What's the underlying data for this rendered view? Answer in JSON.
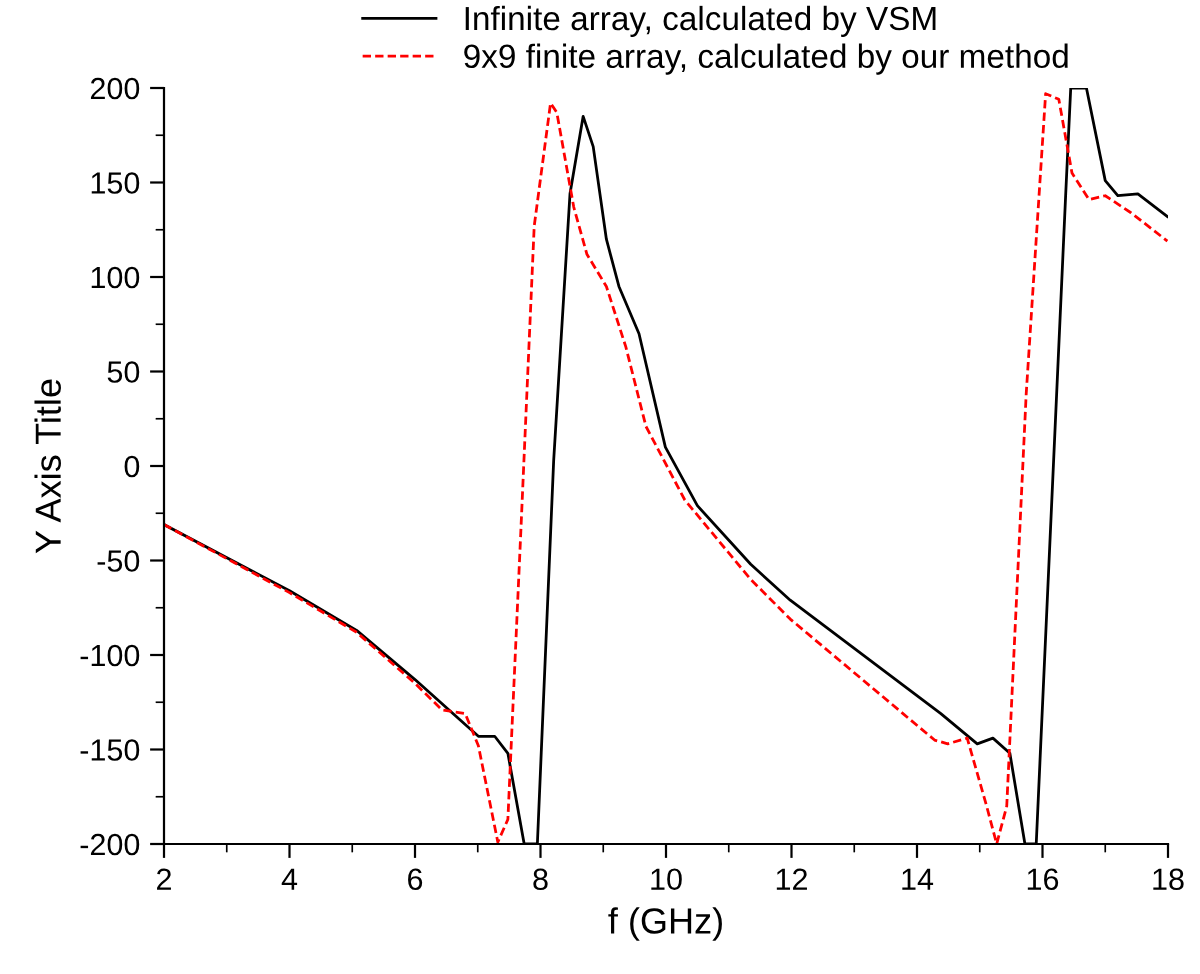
{
  "chart_data": {
    "type": "line",
    "xlabel": "f (GHz)",
    "ylabel": "Y Axis Title",
    "xlim": [
      2,
      18
    ],
    "ylim": [
      -200,
      200
    ],
    "xticks": [
      2,
      4,
      6,
      8,
      10,
      12,
      14,
      16,
      18
    ],
    "yticks": [
      -200,
      -150,
      -100,
      -50,
      0,
      50,
      100,
      150,
      200
    ],
    "grid": false,
    "legend": "top",
    "marker": "none",
    "series": [
      {
        "name": "Infinite array, calculated by VSM",
        "color": "#000000",
        "line_style": "solid",
        "x": [
          2,
          4,
          5.07,
          6,
          6.64,
          7.01,
          7.27,
          7.48,
          7.74,
          7.95,
          8.21,
          8.47,
          8.68,
          8.84,
          9.05,
          9.25,
          9.57,
          9.99,
          10.5,
          11.35,
          11.98,
          14.38,
          14.96,
          15.21,
          15.48,
          15.72,
          15.9,
          16.37,
          16.45,
          16.7,
          17.0,
          17.2,
          17.52,
          17.99
        ],
        "values": [
          -31,
          -66,
          -87,
          -113,
          -132,
          -143,
          -143,
          -152,
          -200,
          -200,
          3,
          144,
          185,
          169,
          120,
          95,
          70,
          10,
          -21,
          -52,
          -71,
          -131,
          -147,
          -144,
          -152,
          -200,
          -200,
          144,
          200,
          200,
          151,
          143,
          144,
          132
        ]
      },
      {
        "name": "9x9 finite array, calculated by our method",
        "color": "#ff0000",
        "line_style": "dashed",
        "x": [
          2,
          4,
          5.07,
          6,
          6.43,
          6.8,
          7.01,
          7.32,
          7.48,
          7.69,
          7.9,
          8.16,
          8.26,
          8.53,
          8.74,
          9.05,
          9.36,
          9.68,
          10.3,
          11.35,
          11.98,
          14.28,
          14.49,
          14.8,
          15.11,
          15.27,
          15.43,
          15.74,
          16.05,
          16.26,
          16.47,
          16.74,
          17.0,
          17.41,
          17.99
        ],
        "values": [
          -31,
          -67,
          -88,
          -115,
          -129,
          -131,
          -148,
          -199,
          -187,
          -32,
          127,
          192,
          187,
          137,
          112,
          95,
          63,
          21,
          -18,
          -60,
          -81,
          -145,
          -147,
          -144,
          -180,
          -200,
          -180,
          38,
          197,
          194,
          155,
          141,
          143,
          134,
          119
        ]
      }
    ]
  }
}
